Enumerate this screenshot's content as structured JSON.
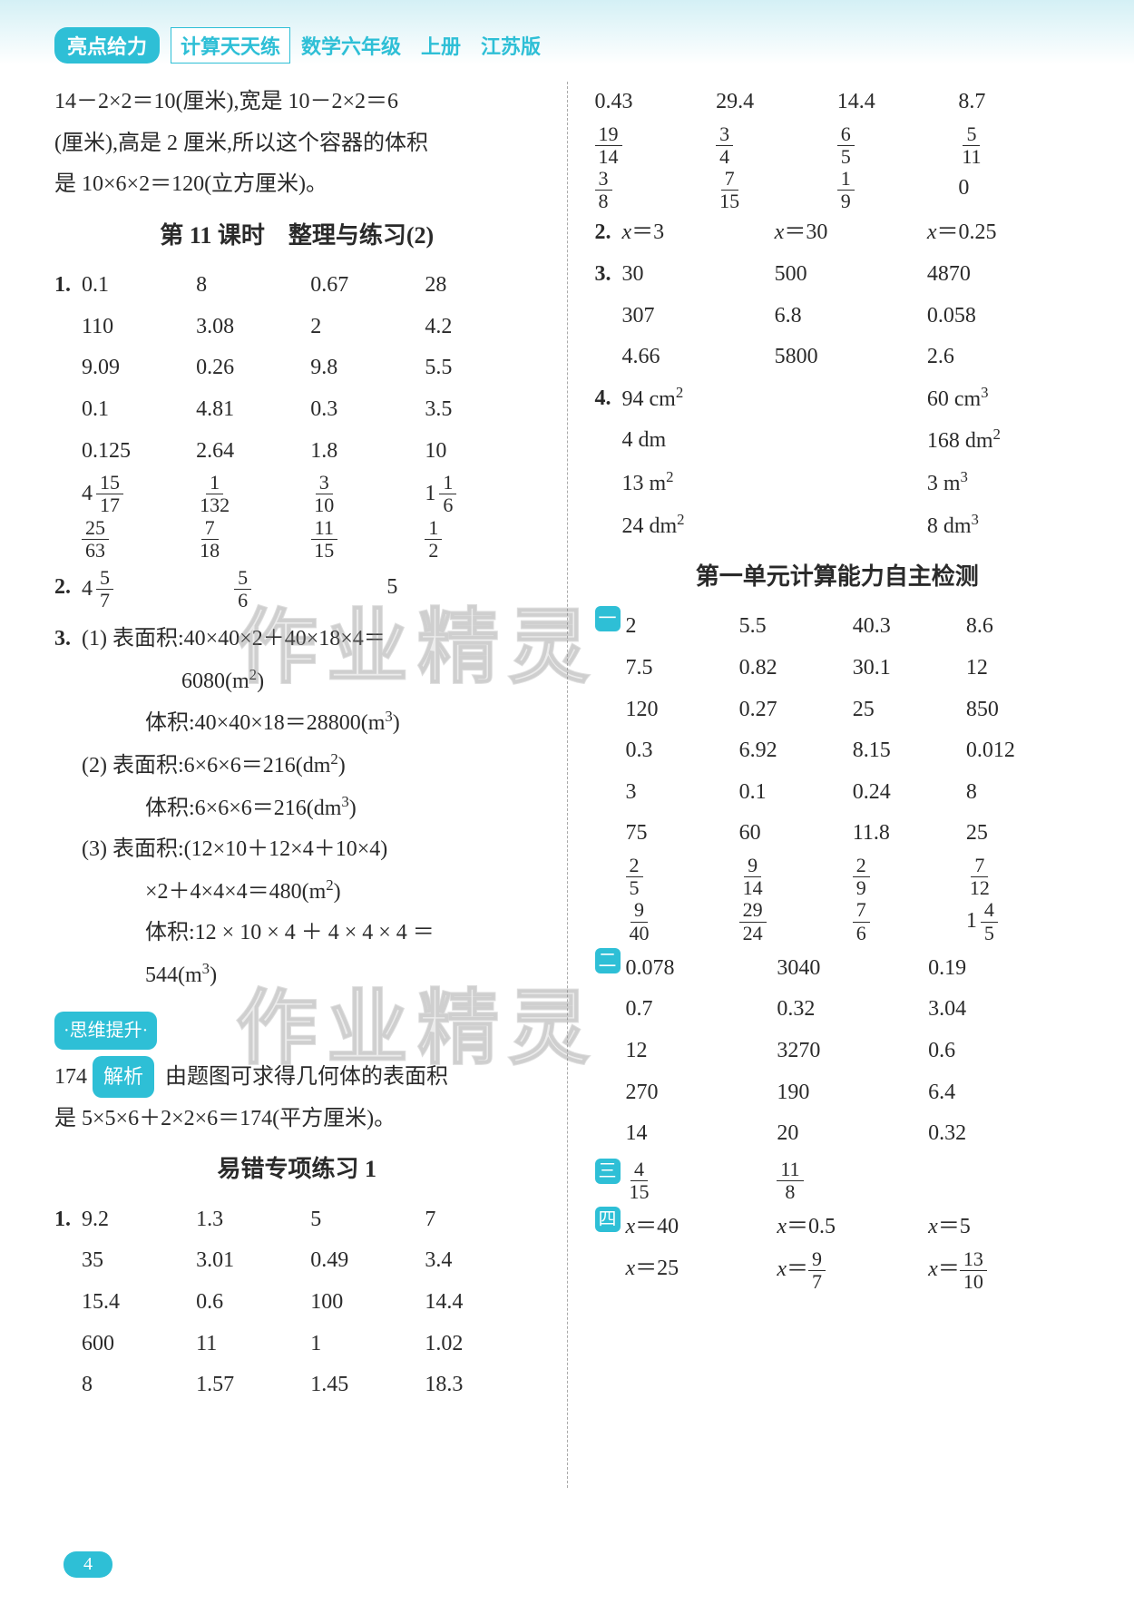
{
  "header": {
    "badge": "亮点给力",
    "boxed": "计算天天练",
    "rest": "数学六年级　上册　江苏版"
  },
  "page_number": "4",
  "watermark": "作业精灵",
  "left": {
    "intro_lines": [
      "14－2×2＝10(厘米),宽是 10－2×2＝6",
      "(厘米),高是 2 厘米,所以这个容器的体积",
      "是 10×6×2＝120(立方厘米)。"
    ],
    "section11_title": "第 11 课时　整理与练习(2)",
    "q1_rows": [
      [
        "0.1",
        "8",
        "0.67",
        "28"
      ],
      [
        "110",
        "3.08",
        "2",
        "4.2"
      ],
      [
        "9.09",
        "0.26",
        "9.8",
        "5.5"
      ],
      [
        "0.1",
        "4.81",
        "0.3",
        "3.5"
      ],
      [
        "0.125",
        "2.64",
        "1.8",
        "10"
      ]
    ],
    "q1_frac_rows": [
      [
        {
          "type": "mixed",
          "w": "4",
          "n": "15",
          "d": "17"
        },
        {
          "type": "frac",
          "n": "1",
          "d": "132"
        },
        {
          "type": "frac",
          "n": "3",
          "d": "10"
        },
        {
          "type": "mixed",
          "w": "1",
          "n": "1",
          "d": "6"
        }
      ],
      [
        {
          "type": "frac",
          "n": "25",
          "d": "63"
        },
        {
          "type": "frac",
          "n": "7",
          "d": "18"
        },
        {
          "type": "frac",
          "n": "11",
          "d": "15"
        },
        {
          "type": "frac",
          "n": "1",
          "d": "2"
        }
      ]
    ],
    "q2_cells": [
      {
        "type": "mixed",
        "w": "4",
        "n": "5",
        "d": "7"
      },
      {
        "type": "frac",
        "n": "5",
        "d": "6"
      },
      {
        "type": "text",
        "v": "5"
      }
    ],
    "q3": {
      "p1": [
        "(1) 表面积:40×40×2＋40×18×4＝",
        "6080(m²)",
        "体积:40×40×18＝28800(m³)"
      ],
      "p2": [
        "(2) 表面积:6×6×6＝216(dm²)",
        "体积:6×6×6＝216(dm³)"
      ],
      "p3": [
        "(3) 表面积:(12×10＋12×4＋10×4)",
        "×2＋4×4×4＝480(m²)",
        "体积:12 × 10 × 4 ＋ 4 × 4 × 4 ＝",
        "544(m³)"
      ]
    },
    "siwei_title": "·思维提升·",
    "siwei_num": "174",
    "siwei_pill": "解析",
    "siwei_text1": "由题图可求得几何体的表面积",
    "siwei_text2": "是 5×5×6＋2×2×6＝174(平方厘米)。",
    "yicuo_title": "易错专项练习 1",
    "yicuo_q1": [
      [
        "9.2",
        "1.3",
        "5",
        "7"
      ],
      [
        "35",
        "3.01",
        "0.49",
        "3.4"
      ],
      [
        "15.4",
        "0.6",
        "100",
        "14.4"
      ],
      [
        "600",
        "11",
        "1",
        "1.02"
      ],
      [
        "8",
        "1.57",
        "1.45",
        "18.3"
      ]
    ]
  },
  "right": {
    "top_rows": [
      [
        "0.43",
        "29.4",
        "14.4",
        "8.7"
      ]
    ],
    "top_frac_rows": [
      [
        {
          "n": "19",
          "d": "14"
        },
        {
          "n": "3",
          "d": "4"
        },
        {
          "n": "6",
          "d": "5"
        },
        {
          "n": "5",
          "d": "11"
        }
      ],
      [
        {
          "n": "3",
          "d": "8"
        },
        {
          "n": "7",
          "d": "15"
        },
        {
          "n": "1",
          "d": "9"
        },
        {
          "type": "text",
          "v": "0"
        }
      ]
    ],
    "q2": [
      "x＝3",
      "x＝30",
      "x＝0.25"
    ],
    "q3_rows": [
      [
        "30",
        "500",
        "4870"
      ],
      [
        "307",
        "6.8",
        "0.058"
      ],
      [
        "4.66",
        "5800",
        "2.6"
      ]
    ],
    "q4_rows": [
      [
        "94 cm²",
        "",
        "60 cm³"
      ],
      [
        "4 dm",
        "",
        "168 dm²"
      ],
      [
        "13 m²",
        "",
        "3 m³"
      ],
      [
        "24 dm²",
        "",
        "8 dm³"
      ]
    ],
    "unit_title": "第一单元计算能力自主检测",
    "sec1_rows": [
      [
        "2",
        "5.5",
        "40.3",
        "8.6"
      ],
      [
        "7.5",
        "0.82",
        "30.1",
        "12"
      ],
      [
        "120",
        "0.27",
        "25",
        "850"
      ],
      [
        "0.3",
        "6.92",
        "8.15",
        "0.012"
      ],
      [
        "3",
        "0.1",
        "0.24",
        "8"
      ],
      [
        "75",
        "60",
        "11.8",
        "25"
      ]
    ],
    "sec1_frac_rows": [
      [
        {
          "n": "2",
          "d": "5"
        },
        {
          "n": "9",
          "d": "14"
        },
        {
          "n": "2",
          "d": "9"
        },
        {
          "n": "7",
          "d": "12"
        }
      ],
      [
        {
          "n": "9",
          "d": "40"
        },
        {
          "n": "29",
          "d": "24"
        },
        {
          "n": "7",
          "d": "6"
        },
        {
          "type": "mixed",
          "w": "1",
          "n": "4",
          "d": "5"
        }
      ]
    ],
    "sec2_rows": [
      [
        "0.078",
        "3040",
        "0.19"
      ],
      [
        "0.7",
        "0.32",
        "3.04"
      ],
      [
        "12",
        "3270",
        "0.6"
      ],
      [
        "270",
        "190",
        "6.4"
      ],
      [
        "14",
        "20",
        "0.32"
      ]
    ],
    "sec3_fracs": [
      {
        "n": "4",
        "d": "15"
      },
      {
        "n": "11",
        "d": "8"
      }
    ],
    "sec4_row1": [
      "x＝40",
      "x＝0.5",
      "x＝5"
    ],
    "sec4_row2": [
      {
        "pre": "x＝25"
      },
      {
        "pre": "x＝",
        "n": "9",
        "d": "7"
      },
      {
        "pre": "x＝",
        "n": "13",
        "d": "10"
      }
    ]
  }
}
